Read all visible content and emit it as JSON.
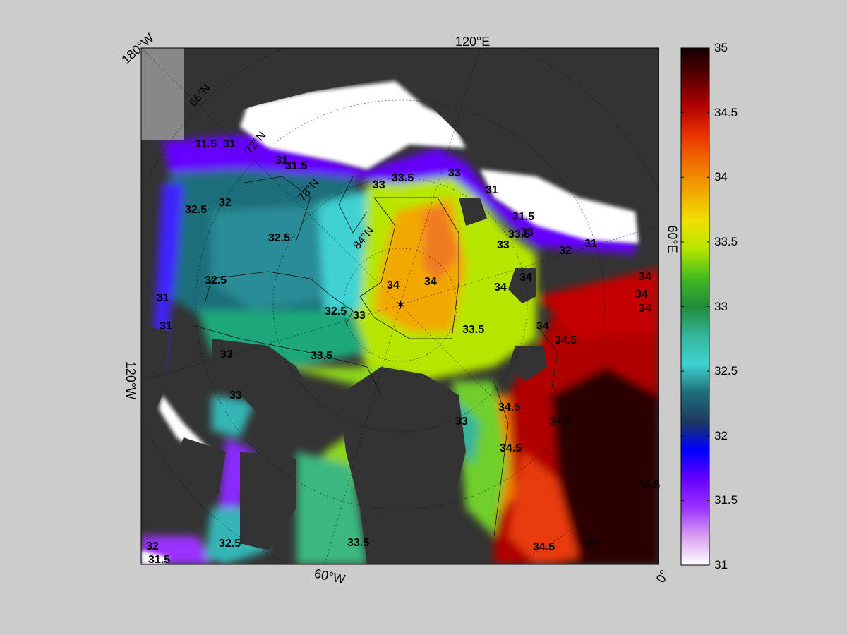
{
  "map": {
    "meridian_labels": [
      {
        "id": "lon-180w",
        "text": "180°W"
      },
      {
        "id": "lon-120e",
        "text": "120°E"
      },
      {
        "id": "lon-60e",
        "text": "60°E"
      },
      {
        "id": "lon-120w",
        "text": "120°W"
      },
      {
        "id": "lon-60w",
        "text": "60°W"
      },
      {
        "id": "lon-0",
        "text": "0°"
      }
    ],
    "parallel_labels": [
      {
        "id": "lat-66n",
        "text": "66°N"
      },
      {
        "id": "lat-72n",
        "text": "72°N"
      },
      {
        "id": "lat-78n",
        "text": "78°N"
      },
      {
        "id": "lat-84n",
        "text": "84°N"
      }
    ],
    "contour_labels": [
      "31.5",
      "31",
      "31",
      "31.5",
      "32",
      "32.5",
      "32.5",
      "32.5",
      "32.5",
      "33",
      "33",
      "33",
      "33.5",
      "33.5",
      "33.5",
      "33",
      "34",
      "34",
      "34",
      "34",
      "34",
      "34.5",
      "34.5",
      "34.5",
      "34.5",
      "34",
      "33",
      "33.5",
      "33",
      "32.5",
      "32",
      "31.5",
      "31",
      "31",
      "32",
      "31",
      "31.5",
      "31",
      "34",
      "34",
      "34.5",
      "35",
      "34.5",
      "33",
      "33.5",
      "33"
    ],
    "colors": {
      "land": "#333333",
      "ice_white": "#ffffff",
      "background": "#cccccc"
    }
  },
  "colorbar": {
    "ticks": [
      "35",
      "34.5",
      "34",
      "33.5",
      "33",
      "32.5",
      "32",
      "31.5",
      "31"
    ],
    "colors": [
      "#ffffff",
      "#d9a0f0",
      "#9b30ff",
      "#6600ff",
      "#0000ff",
      "#1e3a5f",
      "#1f6e7a",
      "#3fd2d2",
      "#35b59a",
      "#1e8c3a",
      "#44bb22",
      "#b6e600",
      "#f0e000",
      "#f2a800",
      "#f07000",
      "#e83000",
      "#b00000",
      "#5a0000",
      "#120000"
    ]
  }
}
